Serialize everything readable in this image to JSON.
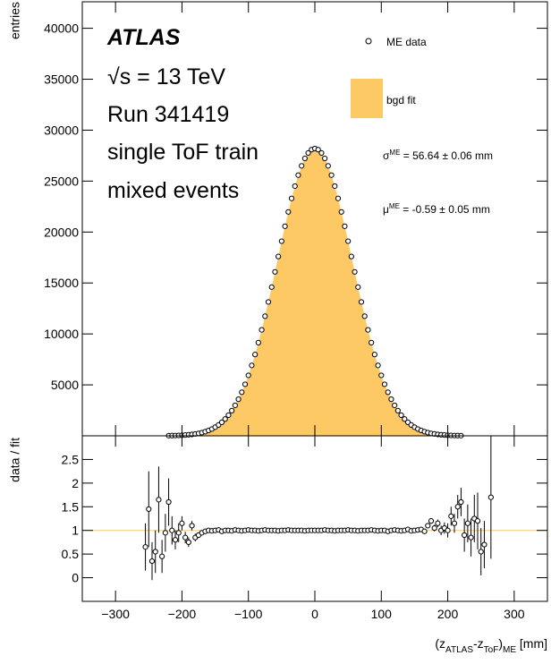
{
  "chart_data": [
    {
      "type": "scatter",
      "ylabel": "entries",
      "texts": {
        "experiment": "ATLAS",
        "energy": "√s = 13 TeV",
        "run": "Run 341419",
        "train": "single ToF train",
        "sample": "mixed events"
      },
      "annotations": [
        {
          "symbol": "σ",
          "sup": "ME",
          "text": " = 56.64 ± 0.06 mm"
        },
        {
          "symbol": "μ",
          "sup": "ME",
          "text": " = -0.59 ± 0.05 mm"
        }
      ],
      "xlim": [
        -350,
        350
      ],
      "ylim": [
        0,
        42600
      ],
      "yticks": [
        5000,
        10000,
        15000,
        20000,
        25000,
        30000,
        35000,
        40000
      ],
      "x": [
        -220,
        -215,
        -210,
        -205,
        -200,
        -195,
        -190,
        -185,
        -180,
        -175,
        -170,
        -165,
        -160,
        -155,
        -150,
        -145,
        -140,
        -135,
        -130,
        -125,
        -120,
        -115,
        -110,
        -105,
        -100,
        -95,
        -90,
        -85,
        -80,
        -75,
        -70,
        -65,
        -60,
        -55,
        -50,
        -45,
        -40,
        -35,
        -30,
        -25,
        -20,
        -15,
        -10,
        -5,
        0,
        5,
        10,
        15,
        20,
        25,
        30,
        35,
        40,
        45,
        50,
        55,
        60,
        65,
        70,
        75,
        80,
        85,
        90,
        95,
        100,
        105,
        110,
        115,
        120,
        125,
        130,
        135,
        140,
        145,
        150,
        155,
        160,
        165,
        170,
        175,
        180,
        185,
        190,
        195,
        200,
        205,
        210,
        215,
        220
      ],
      "series": [
        {
          "name": "ME data",
          "style": "markers",
          "color": "#000000",
          "values": [
            15,
            21,
            29,
            40,
            54,
            74,
            100,
            135,
            181,
            238,
            313,
            406,
            522,
            666,
            846,
            1063,
            1328,
            1647,
            2025,
            2470,
            2989,
            3590,
            4278,
            5056,
            5933,
            6909,
            7981,
            9145,
            10400,
            11737,
            13138,
            14596,
            16091,
            17600,
            19100,
            20566,
            21976,
            23299,
            24509,
            25583,
            26497,
            27227,
            27763,
            28090,
            28200,
            28090,
            27763,
            27227,
            26497,
            25583,
            24509,
            23299,
            21976,
            20566,
            19100,
            17600,
            16091,
            14596,
            13138,
            11737,
            10400,
            9145,
            7981,
            6909,
            5933,
            5056,
            4278,
            3590,
            2989,
            2470,
            2025,
            1647,
            1328,
            1063,
            846,
            666,
            522,
            406,
            313,
            238,
            181,
            135,
            100,
            74,
            54,
            40,
            29,
            21,
            15
          ]
        },
        {
          "name": "bgd fit",
          "style": "filled",
          "color": "#fdc965",
          "values": [
            15,
            21,
            29,
            40,
            54,
            74,
            100,
            135,
            181,
            238,
            313,
            406,
            522,
            666,
            846,
            1063,
            1328,
            1647,
            2025,
            2470,
            2989,
            3590,
            4278,
            5056,
            5933,
            6909,
            7981,
            9145,
            10400,
            11737,
            13138,
            14596,
            16091,
            17600,
            19100,
            20566,
            21976,
            23299,
            24509,
            25583,
            26497,
            27227,
            27763,
            28090,
            28200,
            28090,
            27763,
            27227,
            26497,
            25583,
            24509,
            23299,
            21976,
            20566,
            19100,
            17600,
            16091,
            14596,
            13138,
            11737,
            10400,
            9145,
            7981,
            6909,
            5933,
            5056,
            4278,
            3590,
            2989,
            2470,
            2025,
            1647,
            1328,
            1063,
            846,
            666,
            522,
            406,
            313,
            238,
            181,
            135,
            100,
            74,
            54,
            40,
            29,
            21,
            15
          ]
        }
      ]
    },
    {
      "type": "errorbar",
      "ylabel": "data / fit",
      "xlabel": {
        "open": "(z",
        "sub1": "ATLAS",
        "mid": "-z",
        "sub2": "ToF",
        "close": ")",
        "sub3": "ME",
        "unit": " [mm]"
      },
      "xlim": [
        -350,
        350
      ],
      "ylim": [
        -0.5,
        3
      ],
      "xticks": [
        {
          "value": -300,
          "label": "−300"
        },
        {
          "value": -200,
          "label": "−200"
        },
        {
          "value": -100,
          "label": "−100"
        },
        0,
        100,
        200,
        300
      ],
      "yticks": [
        0,
        0.5,
        1,
        1.5,
        2,
        2.5
      ],
      "refline": 1,
      "refline_color": "#f2c879",
      "x": [
        -255,
        -250,
        -245,
        -240,
        -235,
        -230,
        -225,
        -220,
        -215,
        -210,
        -205,
        -200,
        -195,
        -190,
        -185,
        -180,
        -175,
        -170,
        -165,
        -160,
        -155,
        -150,
        -145,
        -140,
        -135,
        -130,
        -125,
        -120,
        -115,
        -110,
        -105,
        -100,
        -95,
        -90,
        -85,
        -80,
        -75,
        -70,
        -65,
        -60,
        -55,
        -50,
        -45,
        -40,
        -35,
        -30,
        -25,
        -20,
        -15,
        -10,
        -5,
        0,
        5,
        10,
        15,
        20,
        25,
        30,
        35,
        40,
        45,
        50,
        55,
        60,
        65,
        70,
        75,
        80,
        85,
        90,
        95,
        100,
        105,
        110,
        115,
        120,
        125,
        130,
        135,
        140,
        145,
        150,
        155,
        160,
        165,
        170,
        175,
        180,
        185,
        190,
        195,
        200,
        205,
        210,
        215,
        220,
        225,
        230,
        235,
        240,
        245,
        250,
        255,
        265
      ],
      "values": [
        0.65,
        1.45,
        0.35,
        0.55,
        1.65,
        0.45,
        0.95,
        1.6,
        1.0,
        0.8,
        0.95,
        1.15,
        0.85,
        0.75,
        1.1,
        0.85,
        0.9,
        0.95,
        0.98,
        1.0,
        0.99,
        1,
        1.01,
        0.98,
        1,
        1,
        0.99,
        1.01,
        1,
        0.99,
        1,
        1.01,
        1,
        1,
        0.99,
        1,
        1.01,
        1,
        1,
        1,
        0.99,
        1,
        1,
        1.01,
        1,
        1,
        1,
        1,
        0.99,
        1,
        1,
        1,
        1,
        1,
        1.01,
        1,
        1,
        0.99,
        1,
        1,
        1,
        1.01,
        1,
        1,
        0.99,
        1,
        1,
        1,
        1.01,
        1,
        0.99,
        1,
        1,
        0.98,
        1,
        1.01,
        1,
        0.99,
        1,
        1.02,
        0.99,
        1,
        1.01,
        1.02,
        0.98,
        1.1,
        1.2,
        1.05,
        1.15,
        1.0,
        1.05,
        1.0,
        1.3,
        1.15,
        1.5,
        1.6,
        0.9,
        1.15,
        0.85,
        1.25,
        1.2,
        0.55,
        0.7,
        1.7
      ],
      "errors": [
        0.5,
        0.8,
        0.4,
        0.45,
        0.7,
        0.35,
        0.4,
        0.5,
        0.3,
        0.2,
        0.2,
        0.15,
        0.12,
        0.1,
        0.1,
        0.08,
        0.06,
        0.05,
        0.04,
        0.03,
        0.02,
        0.02,
        0.02,
        0.02,
        0.02,
        0.02,
        0.02,
        0.02,
        0.02,
        0.02,
        0.02,
        0.02,
        0.02,
        0.02,
        0.02,
        0.02,
        0.02,
        0.02,
        0.02,
        0.02,
        0.02,
        0.02,
        0.02,
        0.02,
        0.02,
        0.02,
        0.02,
        0.02,
        0.02,
        0.02,
        0.02,
        0.02,
        0.02,
        0.02,
        0.02,
        0.02,
        0.02,
        0.02,
        0.02,
        0.02,
        0.02,
        0.02,
        0.02,
        0.02,
        0.02,
        0.02,
        0.02,
        0.02,
        0.02,
        0.02,
        0.02,
        0.02,
        0.02,
        0.02,
        0.02,
        0.02,
        0.02,
        0.02,
        0.02,
        0.02,
        0.02,
        0.02,
        0.02,
        0.03,
        0.04,
        0.05,
        0.06,
        0.07,
        0.08,
        0.1,
        0.12,
        0.15,
        0.2,
        0.2,
        0.25,
        0.3,
        0.35,
        0.4,
        0.4,
        0.5,
        0.6,
        0.5,
        0.5,
        1.3
      ]
    }
  ]
}
